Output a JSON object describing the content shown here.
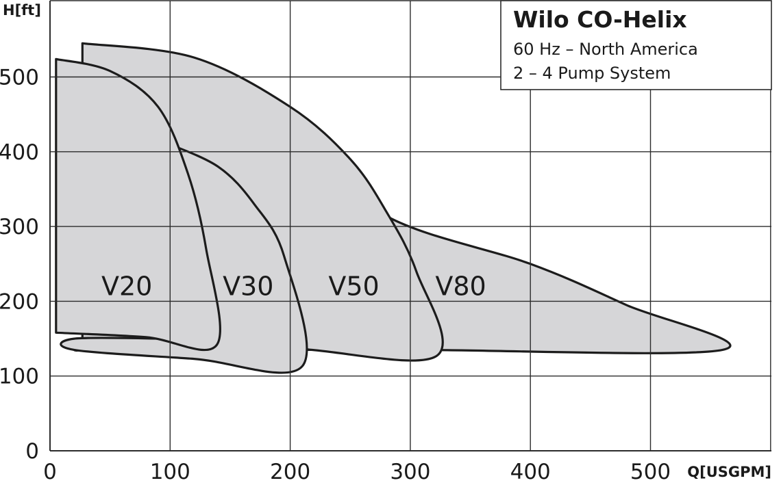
{
  "chart_data": {
    "type": "area",
    "title": "Wilo CO-Helix",
    "subtitle_lines": [
      "60 Hz – North America",
      "2 – 4 Pump System"
    ],
    "xlabel": "Q[USGPM]",
    "ylabel": "H[ft]",
    "xlim": [
      0,
      600
    ],
    "ylim": [
      0,
      550
    ],
    "x_ticks": [
      0,
      100,
      200,
      300,
      400,
      500
    ],
    "y_ticks": [
      0,
      100,
      200,
      300,
      400,
      500
    ],
    "grid": true,
    "legend_position": "top-right",
    "fill_color": "#d6d6d8",
    "stroke_color": "#1c1c1c",
    "series": [
      {
        "name": "V80",
        "label_at": [
          342,
          220
        ],
        "boundary": [
          [
            25,
            500
          ],
          [
            200,
            424
          ],
          [
            280,
            314
          ],
          [
            400,
            250
          ],
          [
            480,
            195
          ],
          [
            560,
            135
          ],
          [
            300,
            135
          ],
          [
            95,
            135
          ]
        ]
      },
      {
        "name": "V50",
        "label_at": [
          253,
          220
        ],
        "boundary": [
          [
            27,
            545
          ],
          [
            120,
            526
          ],
          [
            200,
            460
          ],
          [
            250,
            390
          ],
          [
            280,
            320
          ],
          [
            305,
            240
          ],
          [
            322,
            127
          ],
          [
            210,
            136
          ],
          [
            120,
            143
          ],
          [
            20,
            148
          ],
          [
            20,
            135
          ],
          [
            27,
            135
          ]
        ]
      },
      {
        "name": "V30",
        "label_at": [
          165,
          220
        ],
        "boundary": [
          [
            95,
            413
          ],
          [
            140,
            380
          ],
          [
            170,
            330
          ],
          [
            195,
            260
          ],
          [
            210,
            113
          ],
          [
            120,
            123
          ],
          [
            20,
            135
          ],
          [
            20,
            150
          ],
          [
            95,
            150
          ]
        ]
      },
      {
        "name": "V20",
        "label_at": [
          64,
          220
        ],
        "boundary": [
          [
            5,
            524
          ],
          [
            50,
            508
          ],
          [
            90,
            460
          ],
          [
            115,
            370
          ],
          [
            130,
            270
          ],
          [
            139,
            142
          ],
          [
            80,
            152
          ],
          [
            5,
            158
          ]
        ]
      }
    ]
  }
}
